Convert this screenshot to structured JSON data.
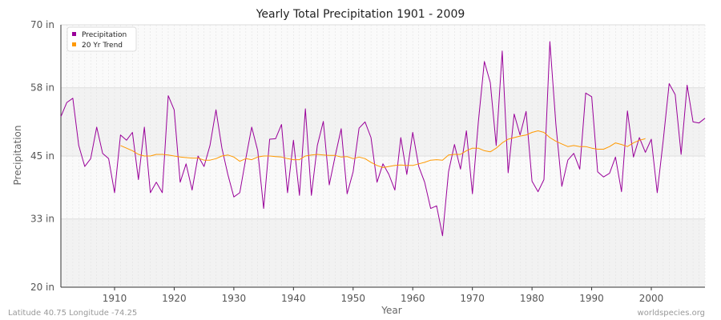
{
  "chart_data": {
    "type": "line",
    "title": "Yearly Total Precipitation 1901 - 2009",
    "xlabel": "Year",
    "ylabel": "Precipitation",
    "xlim": [
      1901,
      2009
    ],
    "ylim": [
      20,
      70
    ],
    "x_ticks": [
      1910,
      1920,
      1930,
      1940,
      1950,
      1960,
      1970,
      1980,
      1990,
      2000
    ],
    "y_ticks": [
      20,
      33,
      45,
      58,
      70
    ],
    "y_tick_labels": [
      "20 in",
      "33 in",
      "45 in",
      "58 in",
      "70 in"
    ],
    "grid": true,
    "legend_position": "top-left",
    "series": [
      {
        "name": "Precipitation",
        "color": "#990099",
        "x": [
          1901,
          1902,
          1903,
          1904,
          1905,
          1906,
          1907,
          1908,
          1909,
          1910,
          1911,
          1912,
          1913,
          1914,
          1915,
          1916,
          1917,
          1918,
          1919,
          1920,
          1921,
          1922,
          1923,
          1924,
          1925,
          1926,
          1927,
          1928,
          1929,
          1930,
          1931,
          1932,
          1933,
          1934,
          1935,
          1936,
          1937,
          1938,
          1939,
          1940,
          1941,
          1942,
          1943,
          1944,
          1945,
          1946,
          1947,
          1948,
          1949,
          1950,
          1951,
          1952,
          1953,
          1954,
          1955,
          1956,
          1957,
          1958,
          1959,
          1960,
          1961,
          1962,
          1963,
          1964,
          1965,
          1966,
          1967,
          1968,
          1969,
          1970,
          1971,
          1972,
          1973,
          1974,
          1975,
          1976,
          1977,
          1978,
          1979,
          1980,
          1981,
          1982,
          1983,
          1984,
          1985,
          1986,
          1987,
          1988,
          1989,
          1990,
          1991,
          1992,
          1993,
          1994,
          1995,
          1996,
          1997,
          1998,
          1999,
          2000,
          2001,
          2002,
          2003,
          2004,
          2005,
          2006,
          2007,
          2008,
          2009
        ],
        "values": [
          52.5,
          55.2,
          56,
          47,
          43,
          44.5,
          50.5,
          45.5,
          44.5,
          38,
          49,
          48,
          49.5,
          40.5,
          50.5,
          38,
          40,
          38,
          56.5,
          53.8,
          40,
          43.5,
          38.5,
          45,
          43,
          47,
          53.8,
          46.5,
          41.5,
          37.2,
          38,
          44.5,
          50.5,
          46,
          35,
          48.2,
          48.3,
          51,
          38,
          48,
          37.5,
          54,
          37.5,
          47,
          51.6,
          39.5,
          45,
          50.2,
          37.8,
          42,
          50.3,
          51.5,
          48.5,
          40,
          43.5,
          41.5,
          38.5,
          48.5,
          41.5,
          49.5,
          43,
          40,
          35,
          35.5,
          29.8,
          42,
          47.2,
          42.5,
          49.8,
          37.8,
          51.5,
          63,
          59,
          47,
          65,
          41.8,
          53,
          49,
          53.5,
          40.2,
          38.2,
          40.5,
          66.8,
          51,
          39.2,
          44.2,
          45.5,
          42.5,
          57,
          56.3,
          42,
          41,
          41.7,
          44.8,
          38.2,
          53.6,
          44.8,
          48.5,
          45.7,
          48.2,
          38,
          48,
          58.8,
          56.7,
          45.3,
          58.5,
          51.5,
          51.3,
          52.2
        ]
      },
      {
        "name": "20 Yr Trend",
        "color": "#ff9900",
        "x": [
          1911,
          1912,
          1913,
          1914,
          1915,
          1916,
          1917,
          1918,
          1919,
          1920,
          1921,
          1922,
          1923,
          1924,
          1925,
          1926,
          1927,
          1928,
          1929,
          1930,
          1931,
          1932,
          1933,
          1934,
          1935,
          1936,
          1937,
          1938,
          1939,
          1940,
          1941,
          1942,
          1943,
          1944,
          1945,
          1946,
          1947,
          1948,
          1949,
          1950,
          1951,
          1952,
          1953,
          1954,
          1955,
          1956,
          1957,
          1958,
          1959,
          1960,
          1961,
          1962,
          1963,
          1964,
          1965,
          1966,
          1967,
          1968,
          1969,
          1970,
          1971,
          1972,
          1973,
          1974,
          1975,
          1976,
          1977,
          1978,
          1979,
          1980,
          1981,
          1982,
          1983,
          1984,
          1985,
          1986,
          1987,
          1988,
          1989,
          1990,
          1991,
          1992,
          1993,
          1994,
          1995,
          1996,
          1997,
          1998,
          1999
        ],
        "values": [
          47,
          46.5,
          46,
          45.3,
          45,
          45,
          45.3,
          45.3,
          45.2,
          45,
          44.8,
          44.7,
          44.6,
          44.6,
          44.2,
          44.2,
          44.5,
          45,
          45.2,
          44.8,
          44,
          44.5,
          44.3,
          44.8,
          45,
          45,
          44.9,
          44.8,
          44.5,
          44.3,
          44.3,
          45,
          45.2,
          45.3,
          45.2,
          45.1,
          45.1,
          44.8,
          44.9,
          44.5,
          44.8,
          44.5,
          43.8,
          43.2,
          42.8,
          43,
          43.2,
          43.3,
          43.2,
          43.2,
          43.5,
          43.8,
          44.2,
          44.3,
          44.2,
          45.2,
          45.3,
          45.3,
          46,
          46.5,
          46.5,
          46,
          45.8,
          46.5,
          47.5,
          48.2,
          48.5,
          48.8,
          49,
          49.5,
          49.8,
          49.5,
          48.5,
          47.8,
          47.3,
          46.8,
          47,
          46.8,
          46.8,
          46.5,
          46.3,
          46.3,
          46.8,
          47.5,
          47.2,
          46.8,
          47.5,
          48,
          48.3
        ]
      }
    ]
  },
  "footer": {
    "left": "Latitude 40.75 Longitude -74.25",
    "right": "worldspecies.org"
  }
}
